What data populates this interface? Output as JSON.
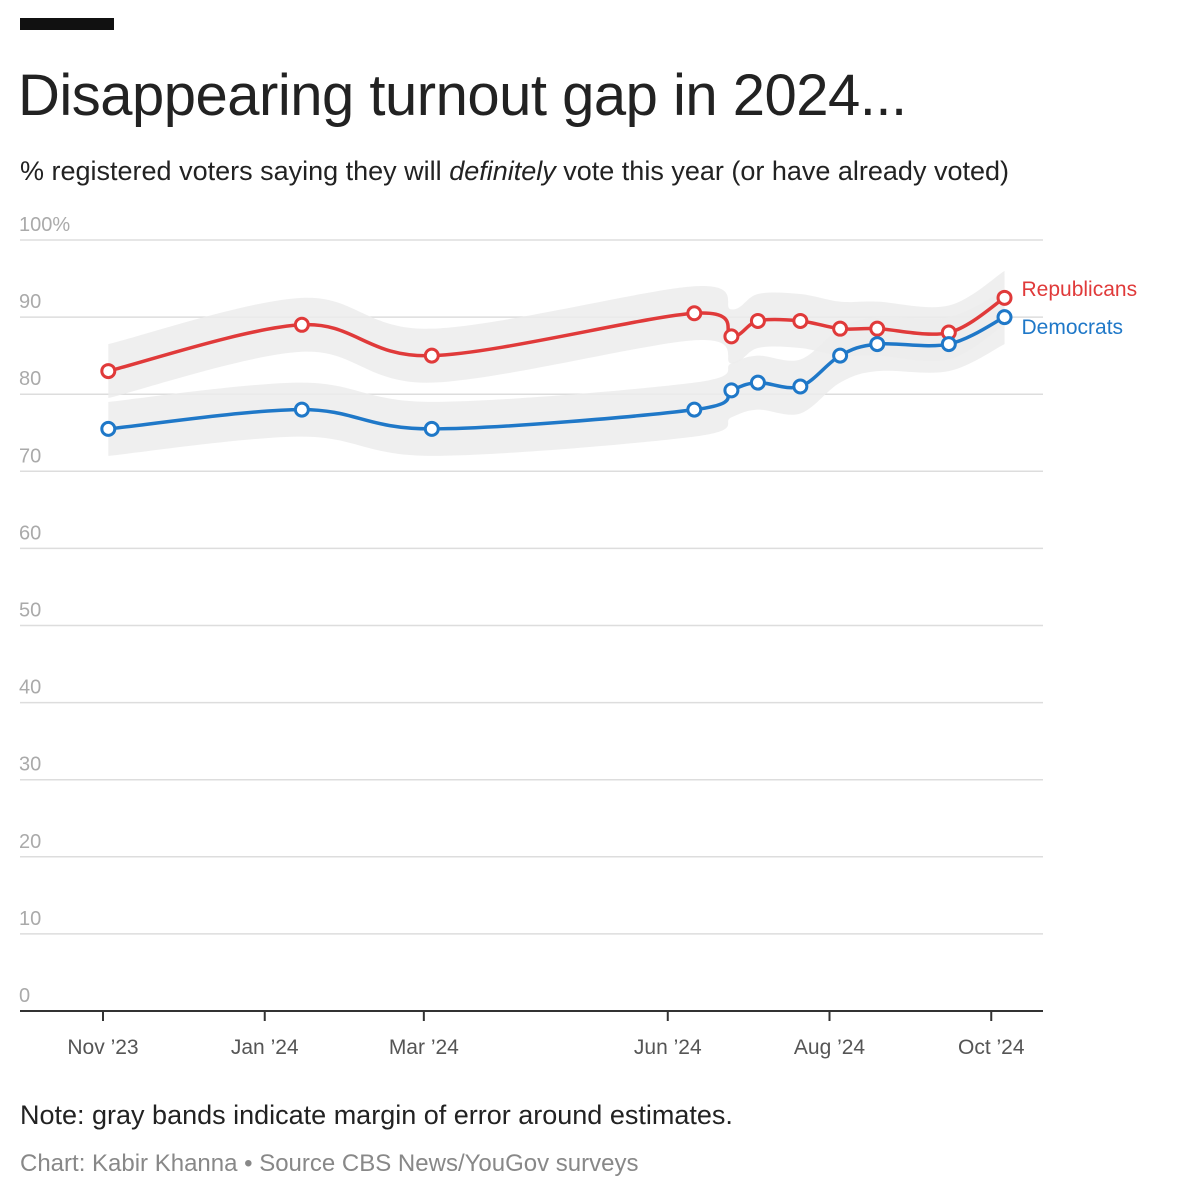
{
  "header": {
    "title": "Disappearing turnout gap in 2024...",
    "subtitle_pre": "% registered voters saying they will ",
    "subtitle_em": "definitely",
    "subtitle_post": " vote this year (or have already voted)"
  },
  "footer": {
    "note": "Note: gray bands indicate margin of error around estimates.",
    "credit": "Chart: Kabir Khanna • Source CBS News/YouGov surveys"
  },
  "colors": {
    "republicans": "#e03a3a",
    "democrats": "#1f78c8",
    "band": "#ececec",
    "grid": "#dddddd",
    "axis": "#333333",
    "tick_label": "#aaaaaa",
    "x_label": "#555555"
  },
  "chart_data": {
    "type": "line",
    "title": "Disappearing turnout gap in 2024...",
    "ylabel": "% registered voters",
    "ylim": [
      0,
      100
    ],
    "y_ticks": [
      0,
      10,
      20,
      30,
      40,
      50,
      60,
      70,
      80,
      90,
      100
    ],
    "y_tick_labels": [
      "0",
      "10",
      "20",
      "30",
      "40",
      "50",
      "60",
      "70",
      "80",
      "90",
      "100%"
    ],
    "x_range_days": [
      0,
      345
    ],
    "x_ticks": [
      {
        "label": "Nov ’23",
        "day": 0
      },
      {
        "label": "Jan ’24",
        "day": 61
      },
      {
        "label": "Mar ’24",
        "day": 121
      },
      {
        "label": "Jun ’24",
        "day": 213
      },
      {
        "label": "Aug ’24",
        "day": 274
      },
      {
        "label": "Oct ’24",
        "day": 335
      }
    ],
    "series": [
      {
        "name": "Republicans",
        "label": "Republicans",
        "days": [
          2,
          75,
          124,
          223,
          237,
          247,
          263,
          278,
          292,
          319,
          340
        ],
        "values": [
          83,
          89,
          85,
          90.5,
          87.5,
          89.5,
          89.5,
          88.5,
          88.5,
          88,
          92.5
        ],
        "band": 3.5
      },
      {
        "name": "Democrats",
        "label": "Democrats",
        "days": [
          2,
          75,
          124,
          223,
          237,
          247,
          263,
          278,
          292,
          319,
          340
        ],
        "values": [
          75.5,
          78,
          75.5,
          78,
          80.5,
          81.5,
          81,
          85,
          86.5,
          86.5,
          90
        ],
        "band": 3.5
      }
    ]
  }
}
